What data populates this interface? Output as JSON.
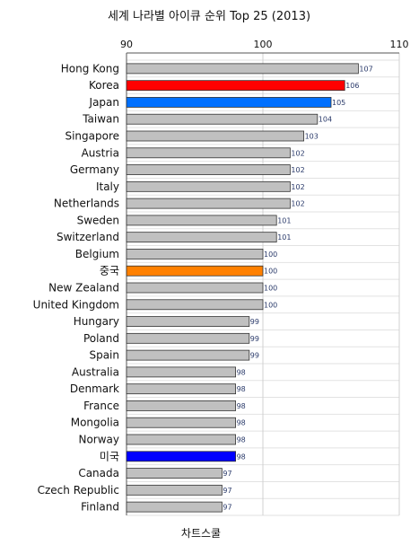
{
  "chart_data": {
    "type": "bar",
    "orientation": "horizontal",
    "title": "세계 나라별 아이큐 순위 Top 25 (2013)",
    "xlim": [
      90,
      110
    ],
    "xticks": [
      90,
      100,
      110
    ],
    "grid": true,
    "categories": [
      "Hong Kong",
      "Korea",
      "Japan",
      "Taiwan",
      "Singapore",
      "Austria",
      "Germany",
      "Italy",
      "Netherlands",
      "Sweden",
      "Switzerland",
      "Belgium",
      "중국",
      "New Zealand",
      "United Kingdom",
      "Hungary",
      "Poland",
      "Spain",
      "Australia",
      "Denmark",
      "France",
      "Mongolia",
      "Norway",
      "미국",
      "Canada",
      "Czech Republic",
      "Finland"
    ],
    "values": [
      107,
      106,
      105,
      104,
      103,
      102,
      102,
      102,
      102,
      101,
      101,
      100,
      100,
      100,
      100,
      99,
      99,
      99,
      98,
      98,
      98,
      98,
      98,
      98,
      97,
      97,
      97
    ],
    "colors": [
      "#c0c0c0",
      "#ff0000",
      "#0070ff",
      "#c0c0c0",
      "#c0c0c0",
      "#c0c0c0",
      "#c0c0c0",
      "#c0c0c0",
      "#c0c0c0",
      "#c0c0c0",
      "#c0c0c0",
      "#c0c0c0",
      "#ff8000",
      "#c0c0c0",
      "#c0c0c0",
      "#c0c0c0",
      "#c0c0c0",
      "#c0c0c0",
      "#c0c0c0",
      "#c0c0c0",
      "#c0c0c0",
      "#c0c0c0",
      "#c0c0c0",
      "#0000ff",
      "#c0c0c0",
      "#c0c0c0",
      "#c0c0c0"
    ]
  },
  "footer": "차트스쿨"
}
